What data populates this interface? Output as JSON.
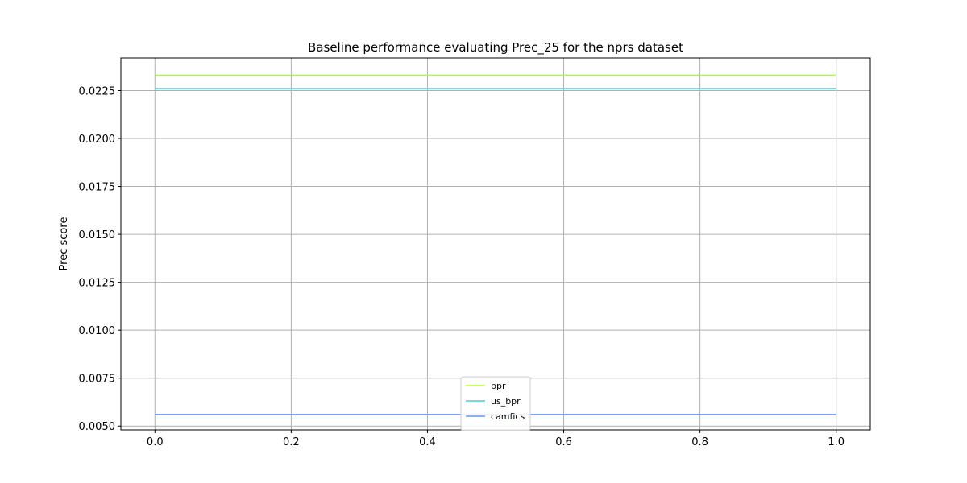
{
  "chart_data": {
    "type": "line",
    "title": "Baseline performance evaluating Prec_25 for the nprs dataset",
    "xlabel": "",
    "ylabel": "Prec score",
    "xlim": [
      -0.05,
      1.05
    ],
    "ylim": [
      0.0048,
      0.0242
    ],
    "x_ticks": [
      0.0,
      0.2,
      0.4,
      0.6,
      0.8,
      1.0
    ],
    "x_tick_labels": [
      "0.0",
      "0.2",
      "0.4",
      "0.6",
      "0.8",
      "1.0"
    ],
    "y_ticks": [
      0.005,
      0.0075,
      0.01,
      0.0125,
      0.015,
      0.0175,
      0.02,
      0.0225
    ],
    "y_tick_labels": [
      "0.0050",
      "0.0075",
      "0.0100",
      "0.0125",
      "0.0150",
      "0.0175",
      "0.0200",
      "0.0225"
    ],
    "grid": true,
    "legend_position": "bottom-center",
    "series": [
      {
        "name": "bpr",
        "color": "#adff2f",
        "x": [
          0.0,
          1.0
        ],
        "y": [
          0.0233,
          0.0233
        ]
      },
      {
        "name": "us_bpr",
        "color": "#48d1cc",
        "x": [
          0.0,
          1.0
        ],
        "y": [
          0.0226,
          0.0226
        ]
      },
      {
        "name": "camfics",
        "color": "#6495ed",
        "x": [
          0.0,
          1.0
        ],
        "y": [
          0.0056,
          0.0056
        ]
      }
    ]
  }
}
